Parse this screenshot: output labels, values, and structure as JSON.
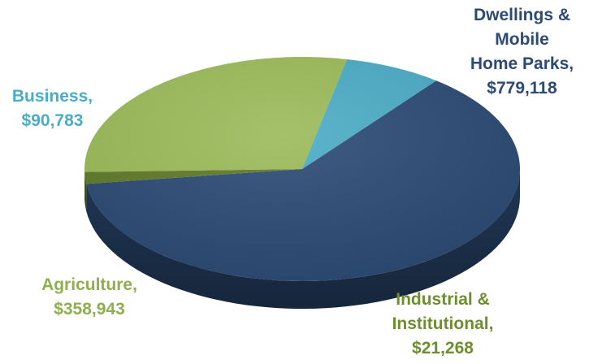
{
  "chart_data": {
    "type": "pie",
    "style": "3d",
    "title": "",
    "slices": [
      {
        "name": "Dwellings & Mobile Home Parks",
        "value": 779118,
        "value_label": "$779,118",
        "label_lines": [
          "Dwellings &",
          "Mobile",
          "Home Parks,",
          "$779,118"
        ],
        "color": "#2B4A74",
        "label_color": "#2B4A74"
      },
      {
        "name": "Industrial & Institutional",
        "value": 21268,
        "value_label": "$21,268",
        "label_lines": [
          "Industrial &",
          "Institutional,",
          "$21,268"
        ],
        "color": "#5F7A28",
        "label_color": "#6E8E2E"
      },
      {
        "name": "Agriculture",
        "value": 358943,
        "value_label": "$358,943",
        "label_lines": [
          "Agriculture,",
          "$358,943"
        ],
        "color": "#9BBB59",
        "label_color": "#8FAE4C"
      },
      {
        "name": "Business",
        "value": 90783,
        "value_label": "$90,783",
        "label_lines": [
          "Business,",
          "$90,783"
        ],
        "color": "#4BACC6",
        "label_color": "#4BACC6"
      }
    ]
  }
}
